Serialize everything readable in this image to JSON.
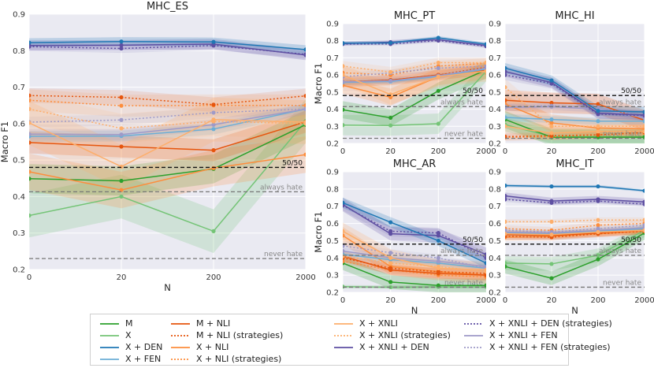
{
  "colors": {
    "M": "#2ca02c",
    "X": "#74c476",
    "X + DEN": "#1f77b4",
    "X + FEN": "#6baed6",
    "M + NLI": "#e6550d",
    "X + NLI": "#fd8d3c",
    "X + XNLI": "#fdae6b",
    "X + XNLI + DEN": "#5e4fa2",
    "X + XNLI + FEN": "#9e9ac8"
  },
  "refs": {
    "fifty": {
      "label": "50/50"
    },
    "always": {
      "label": "always hate"
    },
    "never": {
      "label": "never hate"
    }
  },
  "chart_data": [
    {
      "id": "es",
      "type": "line",
      "title": "MHC_ES",
      "xlabel": "N",
      "ylabel": "Macro F1",
      "x_categories": [
        "0",
        "20",
        "200",
        "2000"
      ],
      "ylim": [
        0.2,
        0.9
      ],
      "yticks": [
        "0.2",
        "0.3",
        "0.4",
        "0.5",
        "0.6",
        "0.7",
        "0.8",
        "0.9"
      ],
      "reference": {
        "fifty": 0.48,
        "always": 0.413,
        "never": 0.23
      },
      "series": [
        {
          "name": "X + DEN",
          "style": "solid",
          "values": [
            0.822,
            0.825,
            0.824,
            0.803
          ],
          "band": 0.012
        },
        {
          "name": "X + XNLI + DEN",
          "style": "solid",
          "values": [
            0.814,
            0.815,
            0.818,
            0.788
          ],
          "band": 0.014
        },
        {
          "name": "X + XNLI + DEN (strategies)",
          "style": "dotted",
          "values": [
            0.811,
            0.806,
            0.814,
            0.79
          ],
          "band": 0.012
        },
        {
          "name": "M + NLI (strategies)",
          "style": "dotted",
          "values": [
            0.677,
            0.672,
            0.652,
            0.676
          ],
          "band": 0.02
        },
        {
          "name": "X + NLI (strategies)",
          "style": "dotted",
          "values": [
            0.664,
            0.649,
            0.65,
            0.65
          ],
          "band": 0.03
        },
        {
          "name": "X + XNLI (strategies)",
          "style": "dotted",
          "values": [
            0.64,
            0.587,
            0.606,
            0.6
          ],
          "band": 0.04
        },
        {
          "name": "X + XNLI + FEN (strategies)",
          "style": "dotted",
          "values": [
            0.604,
            0.61,
            0.63,
            0.64
          ],
          "band": 0.015
        },
        {
          "name": "X + XNLI + FEN",
          "style": "solid",
          "values": [
            0.571,
            0.57,
            0.597,
            0.64
          ],
          "band": 0.015
        },
        {
          "name": "X + FEN",
          "style": "solid",
          "values": [
            0.565,
            0.566,
            0.585,
            0.64
          ],
          "band": 0.015
        },
        {
          "name": "X + XNLI",
          "style": "solid",
          "values": [
            0.602,
            0.482,
            0.611,
            0.604
          ],
          "band": 0.06
        },
        {
          "name": "M + NLI",
          "style": "solid",
          "values": [
            0.548,
            0.537,
            0.527,
            0.605
          ],
          "band": 0.03
        },
        {
          "name": "X + NLI",
          "style": "solid",
          "values": [
            0.468,
            0.418,
            0.478,
            0.515
          ],
          "band": 0.05
        },
        {
          "name": "M",
          "style": "solid",
          "values": [
            0.449,
            0.443,
            0.476,
            0.597
          ],
          "band": 0.04
        },
        {
          "name": "X",
          "style": "solid",
          "values": [
            0.348,
            0.4,
            0.305,
            0.607
          ],
          "band": 0.06
        }
      ]
    },
    {
      "id": "pt",
      "type": "line",
      "title": "MHC_PT",
      "xlabel": "",
      "ylabel": "Macro F1",
      "x_categories": [
        "0",
        "20",
        "200",
        "2000"
      ],
      "ylim": [
        0.2,
        0.9
      ],
      "yticks": [
        "0.2",
        "0.3",
        "0.4",
        "0.5",
        "0.6",
        "0.7",
        "0.8",
        "0.9"
      ],
      "reference": {
        "fifty": 0.48,
        "always": 0.415,
        "never": 0.23
      },
      "series": [
        {
          "name": "X + DEN",
          "style": "solid",
          "values": [
            0.786,
            0.788,
            0.817,
            0.78
          ],
          "band": 0.01
        },
        {
          "name": "X + XNLI + DEN",
          "style": "solid",
          "values": [
            0.784,
            0.792,
            0.806,
            0.772
          ],
          "band": 0.012
        },
        {
          "name": "X + XNLI + DEN (strategies)",
          "style": "dotted",
          "values": [
            0.781,
            0.781,
            0.801,
            0.768
          ],
          "band": 0.01
        },
        {
          "name": "X + XNLI (strategies)",
          "style": "dotted",
          "values": [
            0.652,
            0.617,
            0.672,
            0.672
          ],
          "band": 0.03
        },
        {
          "name": "X + NLI (strategies)",
          "style": "dotted",
          "values": [
            0.613,
            0.6,
            0.652,
            0.668
          ],
          "band": 0.03
        },
        {
          "name": "X + XNLI + FEN (strategies)",
          "style": "dotted",
          "values": [
            0.59,
            0.612,
            0.64,
            0.652
          ],
          "band": 0.02
        },
        {
          "name": "M + NLI (strategies)",
          "style": "dotted",
          "values": [
            0.56,
            0.57,
            0.6,
            0.645
          ],
          "band": 0.02
        },
        {
          "name": "X + XNLI + FEN",
          "style": "solid",
          "values": [
            0.56,
            0.566,
            0.596,
            0.64
          ],
          "band": 0.015
        },
        {
          "name": "X + FEN",
          "style": "solid",
          "values": [
            0.557,
            0.562,
            0.592,
            0.634
          ],
          "band": 0.015
        },
        {
          "name": "X + XNLI",
          "style": "solid",
          "values": [
            0.6,
            0.486,
            0.59,
            0.622
          ],
          "band": 0.06
        },
        {
          "name": "M + NLI",
          "style": "solid",
          "values": [
            0.56,
            0.57,
            0.6,
            0.63
          ],
          "band": 0.03
        },
        {
          "name": "X + NLI",
          "style": "solid",
          "values": [
            0.54,
            0.47,
            0.59,
            0.625
          ],
          "band": 0.05
        },
        {
          "name": "M",
          "style": "solid",
          "values": [
            0.397,
            0.35,
            0.507,
            0.63
          ],
          "band": 0.05
        },
        {
          "name": "X",
          "style": "solid",
          "values": [
            0.307,
            0.305,
            0.315,
            0.622
          ],
          "band": 0.06
        }
      ]
    },
    {
      "id": "hi",
      "type": "line",
      "title": "MHC_HI",
      "xlabel": "",
      "ylabel": "",
      "x_categories": [
        "0",
        "20",
        "200",
        "2000"
      ],
      "ylim": [
        0.2,
        0.9
      ],
      "yticks": [
        "0.2",
        "0.3",
        "0.4",
        "0.5",
        "0.6",
        "0.7",
        "0.8",
        "0.9"
      ],
      "reference": {
        "fifty": 0.48,
        "always": 0.415,
        "never": 0.23
      },
      "series": [
        {
          "name": "X + DEN",
          "style": "solid",
          "values": [
            0.64,
            0.568,
            0.39,
            0.384
          ],
          "band": 0.03
        },
        {
          "name": "X + XNLI + DEN",
          "style": "solid",
          "values": [
            0.62,
            0.556,
            0.376,
            0.366
          ],
          "band": 0.03
        },
        {
          "name": "X + XNLI + DEN (strategies)",
          "style": "dotted",
          "values": [
            0.6,
            0.55,
            0.371,
            0.363
          ],
          "band": 0.03
        },
        {
          "name": "X + XNLI (strategies)",
          "style": "dotted",
          "values": [
            0.528,
            0.3,
            0.3,
            0.3
          ],
          "band": 0.05
        },
        {
          "name": "M + NLI",
          "style": "solid",
          "values": [
            0.452,
            0.437,
            0.43,
            0.335
          ],
          "band": 0.06
        },
        {
          "name": "X + NLI",
          "style": "solid",
          "values": [
            0.43,
            0.32,
            0.29,
            0.285
          ],
          "band": 0.05
        },
        {
          "name": "X + XNLI + FEN (strategies)",
          "style": "dotted",
          "values": [
            0.415,
            0.42,
            0.41,
            0.357
          ],
          "band": 0.02
        },
        {
          "name": "X + XNLI + FEN",
          "style": "solid",
          "values": [
            0.41,
            0.415,
            0.4,
            0.35
          ],
          "band": 0.02
        },
        {
          "name": "X + FEN",
          "style": "solid",
          "values": [
            0.352,
            0.34,
            0.33,
            0.33
          ],
          "band": 0.02
        },
        {
          "name": "M",
          "style": "solid",
          "values": [
            0.34,
            0.236,
            0.236,
            0.236
          ],
          "band": 0.05
        },
        {
          "name": "X",
          "style": "solid",
          "values": [
            0.31,
            0.24,
            0.24,
            0.24
          ],
          "band": 0.04
        },
        {
          "name": "X + XNLI",
          "style": "solid",
          "values": [
            0.3,
            0.26,
            0.27,
            0.27
          ],
          "band": 0.04
        },
        {
          "name": "M + NLI (strategies)",
          "style": "dotted",
          "values": [
            0.24,
            0.245,
            0.25,
            0.265
          ],
          "band": 0.02
        },
        {
          "name": "X + NLI (strategies)",
          "style": "dotted",
          "values": [
            0.235,
            0.24,
            0.25,
            0.26
          ],
          "band": 0.02
        }
      ]
    },
    {
      "id": "ar",
      "type": "line",
      "title": "MHC_AR",
      "xlabel": "N",
      "ylabel": "Macro F1",
      "x_categories": [
        "0",
        "20",
        "200",
        "2000"
      ],
      "ylim": [
        0.2,
        0.9
      ],
      "yticks": [
        "0.2",
        "0.3",
        "0.4",
        "0.5",
        "0.6",
        "0.7",
        "0.8",
        "0.9"
      ],
      "reference": {
        "fifty": 0.48,
        "always": 0.415,
        "never": 0.23
      },
      "series": [
        {
          "name": "X + DEN",
          "style": "solid",
          "values": [
            0.72,
            0.607,
            0.5,
            0.37
          ],
          "band": 0.03
        },
        {
          "name": "X + XNLI + DEN",
          "style": "solid",
          "values": [
            0.71,
            0.54,
            0.53,
            0.42
          ],
          "band": 0.04
        },
        {
          "name": "X + XNLI + DEN (strategies)",
          "style": "dotted",
          "values": [
            0.705,
            0.555,
            0.545,
            0.4
          ],
          "band": 0.03
        },
        {
          "name": "X + XNLI",
          "style": "solid",
          "values": [
            0.555,
            0.4,
            0.34,
            0.33
          ],
          "band": 0.05
        },
        {
          "name": "X + NLI",
          "style": "solid",
          "values": [
            0.53,
            0.35,
            0.32,
            0.3
          ],
          "band": 0.05
        },
        {
          "name": "X + XNLI + FEN (strategies)",
          "style": "dotted",
          "values": [
            0.47,
            0.43,
            0.4,
            0.34
          ],
          "band": 0.02
        },
        {
          "name": "X + XNLI + FEN",
          "style": "solid",
          "values": [
            0.44,
            0.4,
            0.38,
            0.35
          ],
          "band": 0.02
        },
        {
          "name": "X + FEN",
          "style": "solid",
          "values": [
            0.42,
            0.39,
            0.37,
            0.34
          ],
          "band": 0.02
        },
        {
          "name": "X + XNLI (strategies)",
          "style": "dotted",
          "values": [
            0.41,
            0.37,
            0.35,
            0.32
          ],
          "band": 0.03
        },
        {
          "name": "M + NLI",
          "style": "solid",
          "values": [
            0.41,
            0.33,
            0.31,
            0.3
          ],
          "band": 0.03
        },
        {
          "name": "M + NLI (strategies)",
          "style": "dotted",
          "values": [
            0.4,
            0.34,
            0.32,
            0.31
          ],
          "band": 0.02
        },
        {
          "name": "X + NLI (strategies)",
          "style": "dotted",
          "values": [
            0.38,
            0.33,
            0.3,
            0.29
          ],
          "band": 0.02
        },
        {
          "name": "M",
          "style": "solid",
          "values": [
            0.37,
            0.26,
            0.24,
            0.24
          ],
          "band": 0.04
        },
        {
          "name": "X",
          "style": "solid",
          "values": [
            0.233,
            0.23,
            0.232,
            0.232
          ],
          "band": 0.01
        }
      ]
    },
    {
      "id": "it",
      "type": "line",
      "title": "MHC_IT",
      "xlabel": "N",
      "ylabel": "",
      "x_categories": [
        "0",
        "20",
        "200",
        "2000"
      ],
      "ylim": [
        0.2,
        0.9
      ],
      "yticks": [
        "0.2",
        "0.3",
        "0.4",
        "0.5",
        "0.6",
        "0.7",
        "0.8",
        "0.9"
      ],
      "reference": {
        "fifty": 0.48,
        "always": 0.415,
        "never": 0.23
      },
      "series": [
        {
          "name": "X + DEN",
          "style": "solid",
          "values": [
            0.82,
            0.815,
            0.815,
            0.79
          ],
          "band": 0.008
        },
        {
          "name": "X + XNLI + DEN",
          "style": "solid",
          "values": [
            0.76,
            0.73,
            0.74,
            0.725
          ],
          "band": 0.02
        },
        {
          "name": "X + XNLI + DEN (strategies)",
          "style": "dotted",
          "values": [
            0.74,
            0.72,
            0.73,
            0.712
          ],
          "band": 0.015
        },
        {
          "name": "X + XNLI (strategies)",
          "style": "dotted",
          "values": [
            0.61,
            0.61,
            0.62,
            0.62
          ],
          "band": 0.015
        },
        {
          "name": "X + NLI (strategies)",
          "style": "dotted",
          "values": [
            0.57,
            0.56,
            0.59,
            0.6
          ],
          "band": 0.02
        },
        {
          "name": "X + XNLI + FEN (strategies)",
          "style": "dotted",
          "values": [
            0.56,
            0.55,
            0.57,
            0.59
          ],
          "band": 0.015
        },
        {
          "name": "X + XNLI + FEN",
          "style": "solid",
          "values": [
            0.55,
            0.545,
            0.56,
            0.575
          ],
          "band": 0.015
        },
        {
          "name": "X + FEN",
          "style": "solid",
          "values": [
            0.545,
            0.54,
            0.555,
            0.57
          ],
          "band": 0.015
        },
        {
          "name": "X + XNLI",
          "style": "solid",
          "values": [
            0.54,
            0.535,
            0.55,
            0.56
          ],
          "band": 0.02
        },
        {
          "name": "M + NLI",
          "style": "solid",
          "values": [
            0.535,
            0.53,
            0.545,
            0.56
          ],
          "band": 0.02
        },
        {
          "name": "M + NLI (strategies)",
          "style": "dotted",
          "values": [
            0.525,
            0.52,
            0.54,
            0.555
          ],
          "band": 0.02
        },
        {
          "name": "X + NLI",
          "style": "solid",
          "values": [
            0.52,
            0.525,
            0.54,
            0.555
          ],
          "band": 0.02
        },
        {
          "name": "X",
          "style": "solid",
          "values": [
            0.37,
            0.365,
            0.415,
            0.56
          ],
          "band": 0.04
        },
        {
          "name": "M",
          "style": "solid",
          "values": [
            0.35,
            0.282,
            0.392,
            0.545
          ],
          "band": 0.04
        }
      ]
    }
  ],
  "legend": [
    {
      "name": "M",
      "label": "M",
      "style": "solid"
    },
    {
      "name": "X",
      "label": "X",
      "style": "solid"
    },
    {
      "name": "X + DEN",
      "label": "X + DEN",
      "style": "solid"
    },
    {
      "name": "X + FEN",
      "label": "X + FEN",
      "style": "solid"
    },
    {
      "name": "M + NLI",
      "label": "M + NLI",
      "style": "solid"
    },
    {
      "name": "M + NLI",
      "label": "M + NLI (strategies)",
      "style": "dotted"
    },
    {
      "name": "X + NLI",
      "label": "X + NLI",
      "style": "solid"
    },
    {
      "name": "X + NLI",
      "label": "X + NLI (strategies)",
      "style": "dotted"
    },
    {
      "name": "X + XNLI",
      "label": "X + XNLI",
      "style": "solid"
    },
    {
      "name": "X + XNLI",
      "label": "X + XNLI (strategies)",
      "style": "dotted"
    },
    {
      "name": "X + XNLI + DEN",
      "label": "X + XNLI + DEN",
      "style": "solid"
    },
    {
      "name": "X + XNLI + DEN",
      "label": "X + XNLI + DEN (strategies)",
      "style": "dotted"
    },
    {
      "name": "X + XNLI + FEN",
      "label": "X + XNLI + FEN",
      "style": "solid"
    },
    {
      "name": "X + XNLI + FEN",
      "label": "X + XNLI + FEN (strategies)",
      "style": "dotted"
    }
  ]
}
